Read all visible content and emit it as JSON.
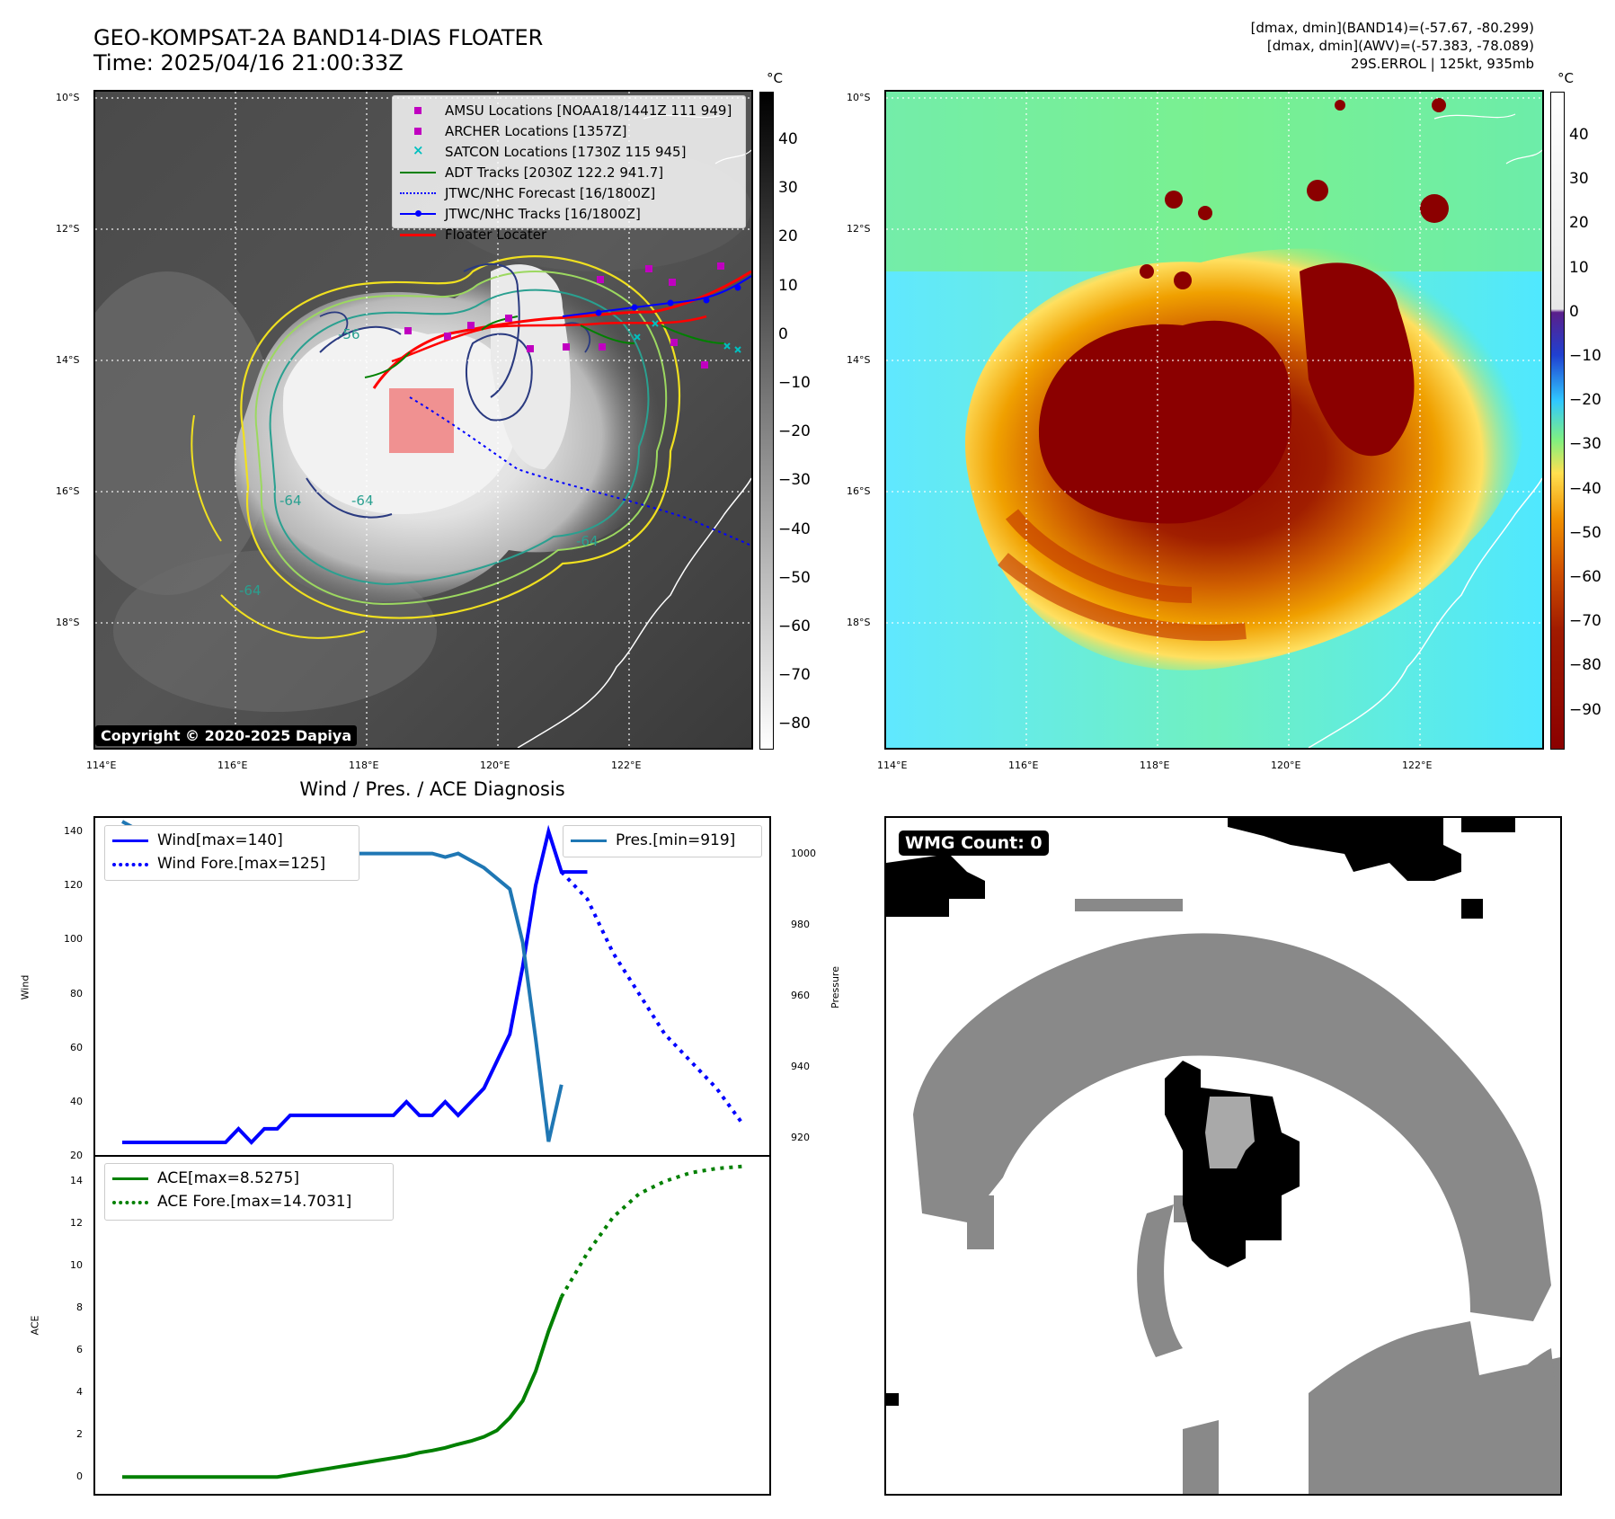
{
  "header": {
    "title_line1": "GEO-KOMPSAT-2A BAND14-DIAS FLOATER",
    "title_line2": "Time: 2025/04/16 21:00:33Z",
    "stats_line1": "[dmax, dmin](BAND14)=(-57.67, -80.299)",
    "stats_line2": "[dmax, dmin](AWV)=(-57.383, -78.089)",
    "stats_line3": "29S.ERROL | 125kt, 935mb"
  },
  "ir_map": {
    "lat_ticks": [
      "10°S",
      "12°S",
      "14°S",
      "16°S",
      "18°S"
    ],
    "lon_ticks": [
      "114°E",
      "116°E",
      "118°E",
      "120°E",
      "122°E"
    ],
    "colorbar_unit": "°C",
    "colorbar_ticks": [
      "40",
      "30",
      "20",
      "10",
      "0",
      "−10",
      "−20",
      "−30",
      "−40",
      "−50",
      "−60",
      "−70",
      "−80"
    ],
    "contour_labels": [
      "-64",
      "-64",
      "-64",
      "-64",
      "-56"
    ],
    "copyright": "Copyright © 2020-2025 Dapiya",
    "legend": [
      {
        "label": "AMSU Locations [NOAA18/1441Z 111 949]",
        "color": "#c000c0",
        "style": "square"
      },
      {
        "label": "ARCHER Locations [1357Z]",
        "color": "#c000c0",
        "style": "square"
      },
      {
        "label": "SATCON Locations [1730Z 115 945]",
        "color": "#00c0c0",
        "style": "x"
      },
      {
        "label": "ADT Tracks [2030Z 122.2 941.7]",
        "color": "#008000",
        "style": "line"
      },
      {
        "label": "JTWC/NHC Forecast [16/1800Z]",
        "color": "#0000ff",
        "style": "dotted"
      },
      {
        "label": "JTWC/NHC Tracks [16/1800Z]",
        "color": "#0000ff",
        "style": "line-dot"
      },
      {
        "label": "Floater Locater",
        "color": "#ff0000",
        "style": "line"
      }
    ],
    "floater_color": "#f08080"
  },
  "awv_map": {
    "lat_ticks": [
      "10°S",
      "12°S",
      "14°S",
      "16°S",
      "18°S"
    ],
    "lon_ticks": [
      "114°E",
      "116°E",
      "118°E",
      "120°E",
      "122°E"
    ],
    "colorbar_unit": "°C",
    "colorbar_ticks": [
      "40",
      "30",
      "20",
      "10",
      "0",
      "−10",
      "−20",
      "−30",
      "−40",
      "−50",
      "−60",
      "−70",
      "−80",
      "−90"
    ]
  },
  "diagnosis": {
    "title": "Wind / Pres. / ACE Diagnosis",
    "wind_ylabel": "Wind",
    "pres_ylabel": "Pressure",
    "ace_ylabel": "ACE",
    "wind_legend": [
      "Wind[max=140]",
      "Wind Fore.[max=125]"
    ],
    "pres_legend": [
      "Pres.[min=919]"
    ],
    "ace_legend": [
      "ACE[max=8.5275]",
      "ACE Fore.[max=14.7031]"
    ]
  },
  "wmg": {
    "label": "WMG Count: 0"
  },
  "chart_data": [
    {
      "type": "line",
      "title": "Wind / Pres. / ACE Diagnosis",
      "ylabel": "Wind",
      "ylim": [
        20,
        145
      ],
      "yticks": [
        20,
        40,
        60,
        80,
        100,
        120,
        140
      ],
      "xlim": [
        0,
        48
      ],
      "series": [
        {
          "name": "Wind[max=140]",
          "color": "#0000ff",
          "style": "solid",
          "x": [
            0,
            1,
            2,
            3,
            4,
            5,
            6,
            7,
            8,
            9,
            10,
            11,
            12,
            13,
            14,
            15,
            16,
            17,
            18,
            19,
            20,
            21,
            22,
            23,
            24,
            25,
            26,
            27,
            28,
            29,
            30,
            31,
            32,
            33,
            34,
            35,
            36
          ],
          "values": [
            25,
            25,
            25,
            25,
            25,
            25,
            25,
            25,
            25,
            30,
            25,
            30,
            30,
            35,
            35,
            35,
            35,
            35,
            35,
            35,
            35,
            35,
            40,
            35,
            35,
            40,
            35,
            40,
            45,
            55,
            65,
            90,
            120,
            140,
            125,
            125,
            125
          ]
        },
        {
          "name": "Wind Fore.[max=125]",
          "color": "#0000ff",
          "style": "dotted",
          "x": [
            34,
            36,
            38,
            40,
            42,
            44,
            46,
            48
          ],
          "values": [
            125,
            115,
            95,
            80,
            65,
            55,
            45,
            32
          ]
        }
      ]
    },
    {
      "type": "line",
      "ylabel": "Pressure",
      "ylim": [
        915,
        1010
      ],
      "yticks": [
        920,
        940,
        960,
        980,
        1000
      ],
      "xlim": [
        0,
        48
      ],
      "series": [
        {
          "name": "Pres.[min=919]",
          "color": "#1f77b4",
          "style": "solid",
          "x": [
            0,
            1,
            2,
            3,
            4,
            5,
            6,
            7,
            8,
            9,
            10,
            11,
            12,
            13,
            14,
            15,
            16,
            17,
            18,
            19,
            20,
            21,
            22,
            23,
            24,
            25,
            26,
            27,
            28,
            29,
            30,
            31,
            32,
            33,
            34
          ],
          "values": [
            1009,
            1007,
            1006,
            1006,
            1005,
            1004,
            1002,
            1001,
            1001,
            1000,
            1001,
            1000,
            1000,
            1000,
            1000,
            1000,
            1000,
            1000,
            1000,
            1000,
            1000,
            1000,
            1000,
            1000,
            1000,
            999,
            1000,
            998,
            996,
            993,
            990,
            975,
            948,
            919,
            935
          ]
        }
      ]
    },
    {
      "type": "line",
      "ylabel": "ACE",
      "ylim": [
        -0.8,
        15.2
      ],
      "yticks": [
        0,
        2,
        4,
        6,
        8,
        10,
        12,
        14
      ],
      "xlim": [
        0,
        48
      ],
      "series": [
        {
          "name": "ACE[max=8.5275]",
          "color": "#008000",
          "style": "solid",
          "x": [
            0,
            2,
            4,
            6,
            8,
            10,
            12,
            13,
            14,
            15,
            16,
            17,
            18,
            19,
            20,
            21,
            22,
            23,
            24,
            25,
            26,
            27,
            28,
            29,
            30,
            31,
            32,
            33,
            34
          ],
          "values": [
            0,
            0,
            0,
            0,
            0,
            0,
            0,
            0.1,
            0.2,
            0.3,
            0.4,
            0.5,
            0.6,
            0.7,
            0.8,
            0.9,
            1.0,
            1.15,
            1.25,
            1.38,
            1.55,
            1.7,
            1.9,
            2.2,
            2.8,
            3.6,
            5.0,
            6.9,
            8.5275
          ]
        },
        {
          "name": "ACE Fore.[max=14.7031]",
          "color": "#008000",
          "style": "dotted",
          "x": [
            34,
            36,
            38,
            40,
            42,
            44,
            46,
            48
          ],
          "values": [
            8.5275,
            10.6,
            12.3,
            13.4,
            14.0,
            14.4,
            14.6,
            14.7031
          ]
        }
      ]
    }
  ]
}
